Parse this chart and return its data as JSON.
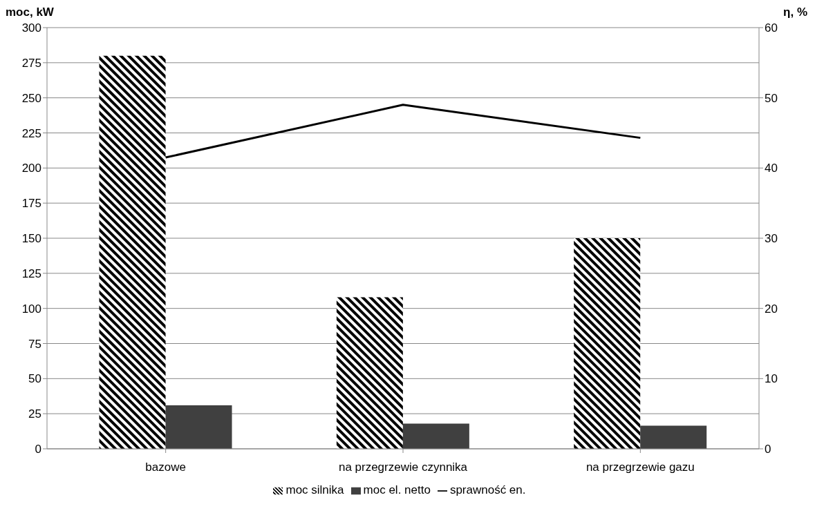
{
  "chart_data": {
    "type": "bar",
    "categories": [
      "bazowe",
      "na przegrzewie czynnika",
      "na przegrzewie gazu"
    ],
    "ylabel": "moc, kW",
    "y2label": "η, %",
    "series": [
      {
        "name": "moc silnika",
        "color": "#000000",
        "values": [
          280,
          108,
          150
        ]
      },
      {
        "name": "moc el. netto",
        "color": "#404040",
        "values": [
          31,
          18,
          16.5
        ]
      },
      {
        "name": "sprawność en.",
        "type": "line",
        "axis": "y2",
        "color": "#000000",
        "values": [
          41.5,
          49,
          44.3
        ]
      }
    ],
    "ylim": [
      0,
      300
    ],
    "yticks": [
      0,
      25,
      50,
      75,
      100,
      125,
      150,
      175,
      200,
      225,
      250,
      275,
      300
    ],
    "y2lim": [
      0,
      60
    ],
    "y2ticks": [
      0,
      10,
      20,
      30,
      40,
      50,
      60
    ],
    "grid": "y",
    "legend": "bottom",
    "marker": "none"
  }
}
